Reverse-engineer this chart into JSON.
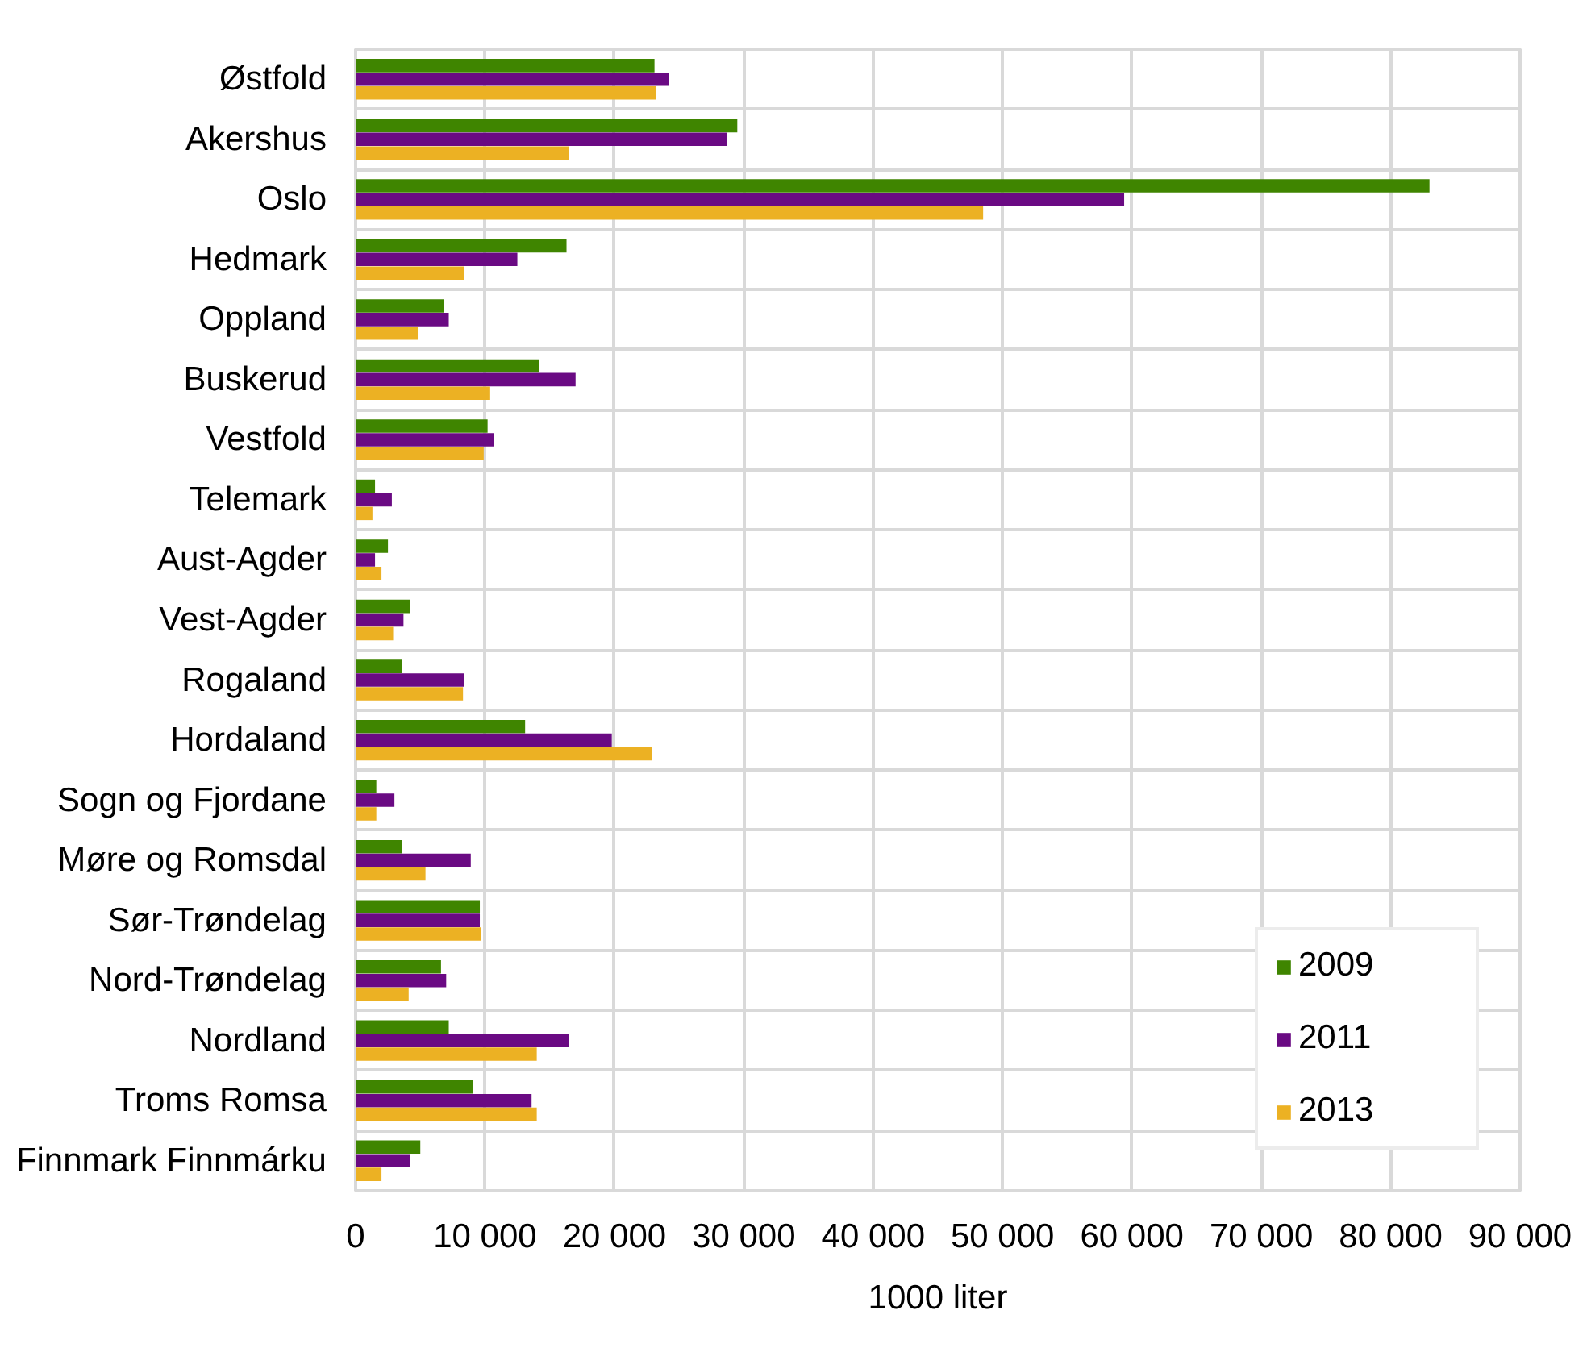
{
  "chart_data": {
    "type": "bar",
    "orientation": "horizontal",
    "categories": [
      "Østfold",
      "Akershus",
      "Oslo",
      "Hedmark",
      "Oppland",
      "Buskerud",
      "Vestfold",
      "Telemark",
      "Aust-Agder",
      "Vest-Agder",
      "Rogaland",
      "Hordaland",
      "Sogn og Fjordane",
      "Møre og Romsdal",
      "Sør-Trøndelag",
      "Nord-Trøndelag",
      "Nordland",
      "Troms Romsa",
      "Finnmark Finnmárku"
    ],
    "series": [
      {
        "name": "2009",
        "color": "#3f8500",
        "values": [
          23100,
          29500,
          83000,
          16300,
          6800,
          14200,
          10200,
          1500,
          2500,
          4200,
          3600,
          13100,
          1600,
          3600,
          9600,
          6600,
          7200,
          9100,
          5000
        ]
      },
      {
        "name": "2011",
        "color": "#6a0a83",
        "values": [
          24200,
          28700,
          59400,
          12500,
          7200,
          17000,
          10700,
          2800,
          1500,
          3700,
          8400,
          19800,
          3000,
          8900,
          9600,
          7000,
          16500,
          13600,
          4200
        ]
      },
      {
        "name": "2013",
        "color": "#ecb123",
        "values": [
          23200,
          16500,
          48500,
          8400,
          4800,
          10400,
          9900,
          1300,
          2000,
          2900,
          8300,
          22900,
          1600,
          5400,
          9700,
          4100,
          14000,
          14000,
          2000
        ]
      }
    ],
    "xlim": [
      0,
      90000
    ],
    "xticks": [
      0,
      {
        "value": 10000,
        "label": "10 000"
      },
      {
        "value": 20000,
        "label": "20 000"
      },
      {
        "value": 30000,
        "label": "30 000"
      },
      {
        "value": 40000,
        "label": "40 000"
      },
      {
        "value": 50000,
        "label": "50 000"
      },
      {
        "value": 60000,
        "label": "60 000"
      },
      {
        "value": 70000,
        "label": "70 000"
      },
      {
        "value": 80000,
        "label": "80 000"
      },
      {
        "value": 90000,
        "label": "90 000"
      }
    ],
    "xlabel": "1000 liter",
    "grid": true,
    "legend": "bottom right"
  }
}
